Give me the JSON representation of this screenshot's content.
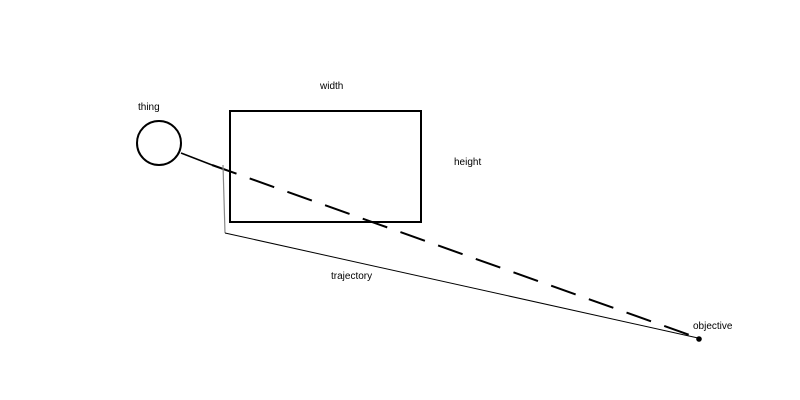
{
  "labels": {
    "thing": "thing",
    "width": "width",
    "height": "height",
    "trajectory": "trajectory",
    "objective": "objective"
  },
  "colors": {
    "stroke": "#000000",
    "background": "#ffffff"
  }
}
